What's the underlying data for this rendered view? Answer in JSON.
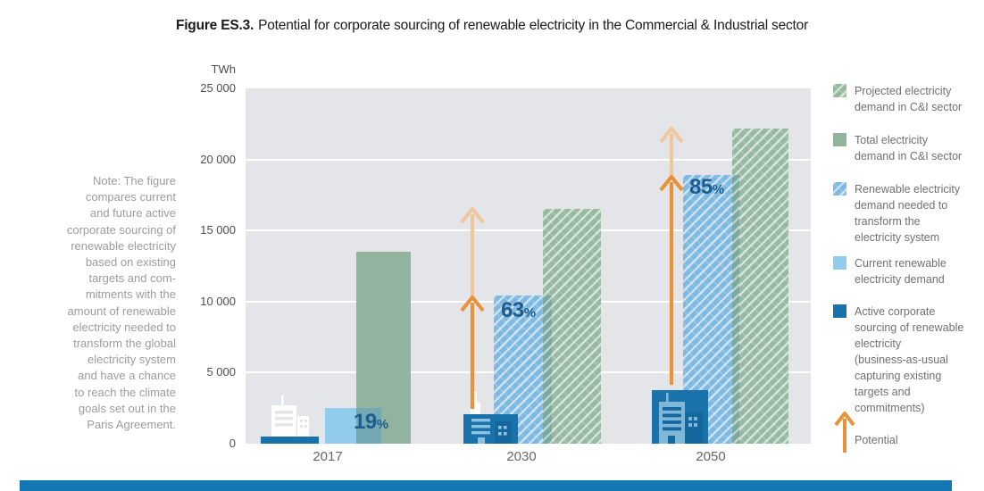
{
  "title": {
    "prefix": "Figure ES.3.",
    "rest": "Potential for corporate sourcing of renewable electricity in the Commercial & Industrial sector"
  },
  "note": {
    "text": "Note: The figure\ncompares current\nand future active\ncorporate sourcing of\nrenewable electricity\nbased on existing\ntargets and com-\nmitments with the\namount of renewable\nelectricity needed to\ntransform the global\nelectricity system\nand have a chance\nto reach the climate\ngoals set out in the\nParis Agreement."
  },
  "y_axis": {
    "unit": "TWh",
    "ticks": [
      "25 000",
      "20 000",
      "15 000",
      "10 000",
      "5 000",
      "0"
    ]
  },
  "chart_data": {
    "type": "bar",
    "unit": "TWh",
    "categories": [
      "2017",
      "2030",
      "2050"
    ],
    "ylim": [
      0,
      25000
    ],
    "ytick_step": 5000,
    "grid": true,
    "legend_position": "right",
    "series": [
      {
        "name": "Electricity demand in C&I sector (total in 2017, projected in 2030 and 2050)",
        "values": [
          13500,
          16500,
          22200
        ]
      },
      {
        "name": "Renewable electricity demand (current in 2017, needed to transform the electricity system in 2030 and 2050)",
        "values": [
          2500,
          10400,
          18900
        ]
      },
      {
        "name": "Active corporate sourcing of renewable electricity (business-as-usual capturing existing targets and commitments)",
        "values": [
          500,
          2100,
          3800
        ]
      }
    ],
    "share_labels": [
      "19%",
      "63%",
      "85%"
    ],
    "arrow_annotation": "Potential"
  },
  "legend": {
    "items": [
      {
        "label": "Projected electricity\ndemand in C&I sector",
        "swatch": "green-hatch"
      },
      {
        "label": "Total electricity\ndemand in C&I sector",
        "swatch": "green-solid"
      },
      {
        "label": "Renewable electricity\ndemand needed to\ntransform the\nelectricity system",
        "swatch": "blue-hatch"
      },
      {
        "label": "Current renewable\nelectricity demand",
        "swatch": "blue-solid"
      },
      {
        "label": "Active corporate\nsourcing of renewable\nelectricity\n(business-as-usual\ncapturing existing\ntargets and\ncommitments)",
        "swatch": "darkblue"
      },
      {
        "label": "Potential",
        "swatch": "arrow"
      }
    ]
  },
  "colors": {
    "green_solid": "#92b49e",
    "green_hatch_base": "#96b9a0",
    "blue_solid": "#92cbec",
    "blue_hatch_base": "#7fb9e2",
    "dark_blue": "#1a72aa",
    "orange": "#e8923a",
    "orange_light": "#f0c79d",
    "plot_background": "#e4e5e9",
    "percent_text": "#1e5c8e",
    "footer_band": "#1478b2"
  }
}
